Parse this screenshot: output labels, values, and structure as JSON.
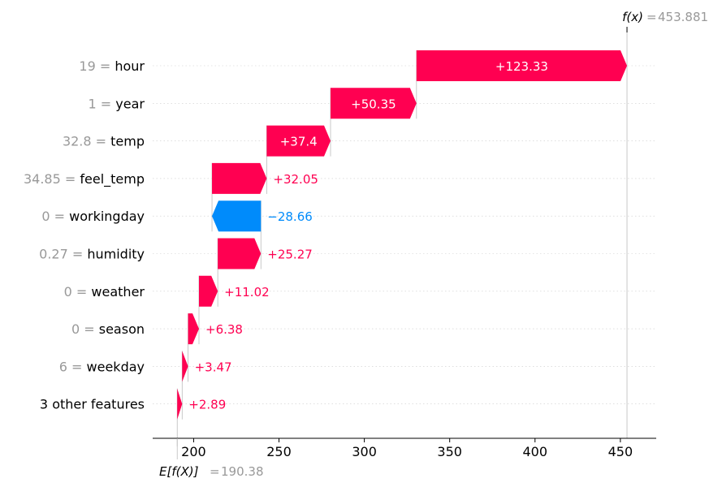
{
  "chart_data": {
    "type": "waterfall",
    "fx": {
      "label": "f(x)",
      "value": "453.881"
    },
    "ex": {
      "label": "E[f(X)]",
      "value": "190.38"
    },
    "base_value": 190.38,
    "final_value": 453.881,
    "x_ticks": [
      200,
      250,
      300,
      350,
      400,
      450
    ],
    "xlim": [
      176,
      471
    ],
    "colors": {
      "positive": "#ff0051",
      "negative": "#008bfb",
      "grid": "#cccccc"
    },
    "features": [
      {
        "value": "19",
        "name": "hour",
        "contribution": 123.33,
        "label": "+123.33"
      },
      {
        "value": "1",
        "name": "year",
        "contribution": 50.35,
        "label": "+50.35"
      },
      {
        "value": "32.8",
        "name": "temp",
        "contribution": 37.4,
        "label": "+37.4"
      },
      {
        "value": "34.85",
        "name": "feel_temp",
        "contribution": 32.05,
        "label": "+32.05"
      },
      {
        "value": "0",
        "name": "workingday",
        "contribution": -28.66,
        "label": "−28.66"
      },
      {
        "value": "0.27",
        "name": "humidity",
        "contribution": 25.27,
        "label": "+25.27"
      },
      {
        "value": "0",
        "name": "weather",
        "contribution": 11.02,
        "label": "+11.02"
      },
      {
        "value": "0",
        "name": "season",
        "contribution": 6.38,
        "label": "+6.38"
      },
      {
        "value": "6",
        "name": "weekday",
        "contribution": 3.47,
        "label": "+3.47"
      },
      {
        "value": "",
        "name": "3 other features",
        "contribution": 2.89,
        "label": "+2.89"
      }
    ]
  }
}
